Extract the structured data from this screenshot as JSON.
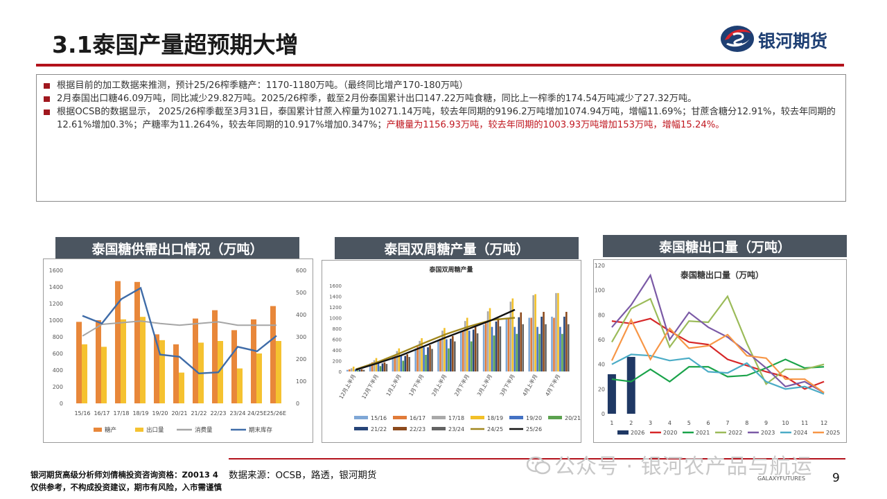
{
  "header": {
    "title": "3.1泰国产量超预期大增",
    "logo_text": "银河期货",
    "colors": {
      "accent": "#b3121b",
      "brand_blue": "#1e3f73"
    }
  },
  "bullets": [
    {
      "text": "根据目前的加工数据来推测，预计25/26榨季糖产：1170-1180万吨。（最终同比增产170-180万吨）",
      "highlight": ""
    },
    {
      "text": "2月泰国出口糖46.09万吨，同比减少29.82万吨。2025/26榨季，截至2月份泰国累计出口147.22万吨食糖，同比上一榨季的174.54万吨减少了27.32万吨。",
      "highlight": ""
    },
    {
      "text": "根据OCSB的数据显示， 2025/26榨季截至3月31日，泰国累计甘蔗入榨量为10271.14万吨，较去年同期的9196.2万吨增加1074.94万吨，增幅11.69%；甘蔗含糖分12.91%，较去年同期的12.61%增加0.3%；产糖率为11.264%，较去年同期的10.917%增加0.347%；",
      "highlight": "产糖量为1156.93万吨，较去年同期的1003.93万吨增加153万吨，增幅15.24%。"
    }
  ],
  "charts": {
    "left_title": "泰国糖供需出口情况（万吨）",
    "mid_title": "泰国双周糖产量（万吨）",
    "right_title": "泰国糖出口量（万吨）"
  },
  "chart_data": [
    {
      "type": "bar",
      "title": "泰国糖供需出口情况（万吨）",
      "categories": [
        "15/16",
        "16/17",
        "17/18",
        "18/19",
        "19/20",
        "20/21",
        "21/22",
        "22/23",
        "23/24",
        "24/25E",
        "25/26E"
      ],
      "ylim": [
        0,
        1600
      ],
      "y2lim": [
        0,
        600
      ],
      "yticks": [
        0,
        200,
        400,
        600,
        800,
        1000,
        1200,
        1400,
        1600
      ],
      "y2ticks": [
        0,
        100,
        200,
        300,
        400,
        500,
        600
      ],
      "series": [
        {
          "name": "糖产",
          "kind": "bar",
          "axis": "left",
          "color": "#e8873a",
          "values": [
            980,
            1000,
            1470,
            1460,
            830,
            710,
            1020,
            1120,
            880,
            1010,
            1170
          ]
        },
        {
          "name": "出口量",
          "kind": "bar",
          "axis": "left",
          "color": "#f5c230",
          "values": [
            710,
            680,
            1010,
            1040,
            760,
            370,
            730,
            750,
            420,
            600,
            750
          ]
        },
        {
          "name": "消费量",
          "kind": "line",
          "axis": "left",
          "color": "#a5a5a5",
          "values": [
            810,
            950,
            970,
            990,
            960,
            940,
            960,
            980,
            940,
            940,
            940
          ]
        },
        {
          "name": "期末库存",
          "kind": "line",
          "axis": "right",
          "color": "#3f6ca8",
          "values": [
            395,
            360,
            470,
            520,
            220,
            210,
            135,
            140,
            255,
            235,
            305
          ]
        }
      ]
    },
    {
      "type": "line",
      "title": "泰国双周糖产量",
      "inner_title": "泰国双周糖产量",
      "categories": [
        "12月上半月",
        "12月下半月",
        "1月上半月",
        "1月下半月",
        "2月上半月",
        "2月下半月",
        "3月上半月",
        "3月下半月",
        "4月上半月",
        "4月下半月"
      ],
      "ylim": [
        0,
        1600
      ],
      "yticks": [
        0,
        200,
        400,
        600,
        800,
        1000,
        1200,
        1400,
        1600
      ],
      "bar_series": [
        {
          "name": "15/16",
          "color": "#7fa7d6",
          "values": [
            30,
            150,
            280,
            430,
            580,
            730,
            870,
            980,
            1000,
            1020
          ]
        },
        {
          "name": "16/17",
          "color": "#e07b39",
          "values": [
            40,
            170,
            300,
            460,
            610,
            760,
            900,
            1000,
            1000,
            1000
          ]
        },
        {
          "name": "17/18",
          "color": "#a9a9a9",
          "values": [
            60,
            210,
            380,
            570,
            760,
            940,
            1120,
            1300,
            1420,
            1460
          ]
        },
        {
          "name": "18/19",
          "color": "#f2c028",
          "values": [
            90,
            250,
            430,
            620,
            810,
            1000,
            1180,
            1360,
            1440,
            1460
          ]
        },
        {
          "name": "19/20",
          "color": "#4472c4",
          "values": [
            40,
            170,
            300,
            450,
            600,
            760,
            830,
            830,
            830,
            830
          ]
        },
        {
          "name": "20/21",
          "color": "#5ba24f",
          "values": [
            20,
            100,
            200,
            310,
            430,
            560,
            670,
            700,
            700,
            700
          ]
        },
        {
          "name": "21/22",
          "color": "#264478",
          "values": [
            30,
            150,
            290,
            450,
            610,
            780,
            930,
            1010,
            1020,
            1020
          ]
        },
        {
          "name": "22/23",
          "color": "#8c4a1c",
          "values": [
            40,
            170,
            320,
            490,
            660,
            830,
            990,
            1100,
            1110,
            1110
          ]
        },
        {
          "name": "23/24",
          "color": "#636363",
          "values": [
            30,
            140,
            270,
            420,
            560,
            710,
            840,
            880,
            880,
            880
          ]
        }
      ],
      "line_series": [
        {
          "name": "24/25",
          "color": "#a0861c",
          "values": [
            40,
            180,
            350,
            530,
            700,
            840,
            960,
            1000,
            null,
            null
          ]
        },
        {
          "name": "25/26",
          "color": "#111111",
          "values": [
            30,
            160,
            300,
            470,
            640,
            800,
            960,
            1150,
            null,
            null
          ]
        }
      ],
      "legend": [
        "15/16",
        "16/17",
        "17/18",
        "18/19",
        "19/20",
        "20/21",
        "21/22",
        "22/23",
        "23/24",
        "24/25",
        "25/26"
      ]
    },
    {
      "type": "line",
      "title": "泰国糖出口量（万吨）",
      "inner_title": "泰国糖出口量（万吨）",
      "x": [
        1,
        2,
        3,
        4,
        5,
        6,
        7,
        8,
        9,
        10,
        11,
        12
      ],
      "ylim": [
        0,
        120
      ],
      "yticks": [
        0,
        20,
        40,
        60,
        80,
        100,
        120
      ],
      "series": [
        {
          "name": "2026",
          "kind": "bar",
          "color": "#1f3864",
          "values": [
            32,
            46,
            null,
            null,
            null,
            null,
            null,
            null,
            null,
            null,
            null,
            null
          ]
        },
        {
          "name": "2020",
          "kind": "line",
          "color": "#d62728",
          "values": [
            75,
            73,
            77,
            67,
            58,
            56,
            44,
            39,
            34,
            30,
            20,
            26
          ]
        },
        {
          "name": "2021",
          "kind": "line",
          "color": "#1aa34a",
          "values": [
            28,
            26,
            36,
            26,
            38,
            38,
            30,
            31,
            37,
            44,
            37,
            38
          ]
        },
        {
          "name": "2022",
          "kind": "line",
          "color": "#9bbb59",
          "values": [
            58,
            85,
            93,
            54,
            75,
            74,
            95,
            57,
            24,
            36,
            36,
            40
          ]
        },
        {
          "name": "2023",
          "kind": "line",
          "color": "#7b5aa6",
          "values": [
            70,
            88,
            112,
            60,
            82,
            70,
            62,
            50,
            37,
            22,
            26,
            17
          ]
        },
        {
          "name": "2024",
          "kind": "line",
          "color": "#4bacc6",
          "values": [
            40,
            48,
            47,
            43,
            45,
            34,
            33,
            41,
            26,
            20,
            22,
            16
          ]
        },
        {
          "name": "2025",
          "kind": "line",
          "color": "#f79646",
          "values": [
            43,
            76,
            44,
            69,
            53,
            55,
            64,
            47,
            45,
            28,
            28,
            17
          ]
        }
      ]
    }
  ],
  "footer": {
    "disclaimer_line1": "银河期货高级分析师刘倩楠投资咨询资格：Z0013 4",
    "disclaimer_line2": "仅供参考，不构成投资建议，期市有风险，入市需谨慎",
    "source": "数据来源：OCSB，路透，银河期货",
    "watermark": "公众号 · 银河农产品与航运",
    "galaxy_futures": "GALAXYFUTURES",
    "page_number": "9"
  }
}
